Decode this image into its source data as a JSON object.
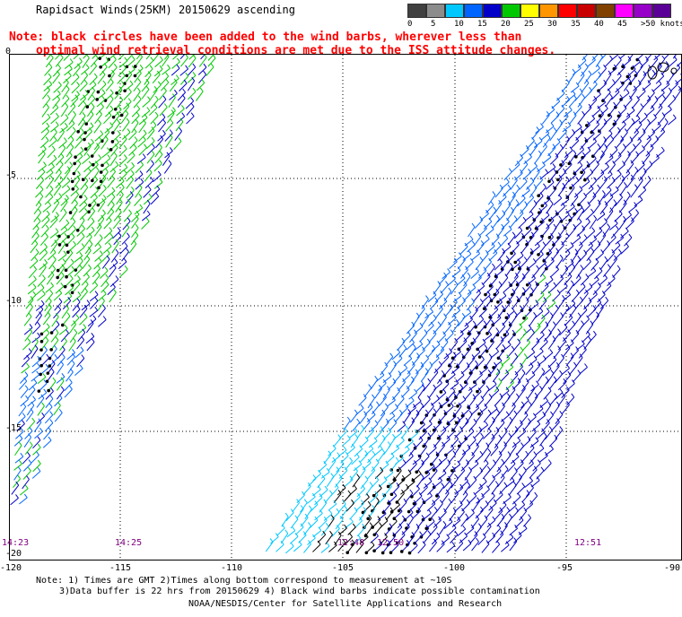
{
  "header": {
    "title": "Rapidsact Winds(25KM) 20150629 ascending",
    "note_line1": "Note: black circles have been added to the wind barbs, wherever less than",
    "note_line2": "optimal wind retrieval conditions are met due to the ISS attitude changes."
  },
  "colorbar": {
    "unit": "knots",
    "labels": [
      "0",
      "5",
      "10",
      "15",
      "20",
      "25",
      "30",
      "35",
      "40",
      "45",
      ">50 knots"
    ],
    "colors": [
      "#404040",
      "#8c8c8c",
      "#00c8ff",
      "#0064ff",
      "#0000c8",
      "#00c800",
      "#ffff00",
      "#ff9600",
      "#ff0000",
      "#c80000",
      "#804000",
      "#ff00ff",
      "#9600c8",
      "#5a0096"
    ]
  },
  "map": {
    "lat_labels": [
      "0",
      "-5",
      "-10",
      "-15",
      "-20"
    ],
    "lon_labels": [
      "-120",
      "-115",
      "-110",
      "-105",
      "-100",
      "-95",
      "-90"
    ],
    "time_labels": [
      "14:23",
      "14:25",
      "12:48",
      "12:50",
      "12:51"
    ]
  },
  "footer": {
    "line1": "Note: 1) Times are GMT 2)Times along bottom correspond to measurement at ~10S",
    "line2": "3)Data buffer is 22 hrs from 20150629 4) Black wind barbs indicate possible contamination",
    "line3": "NOAA/NESDIS/Center for Satellite Applications and Research"
  }
}
